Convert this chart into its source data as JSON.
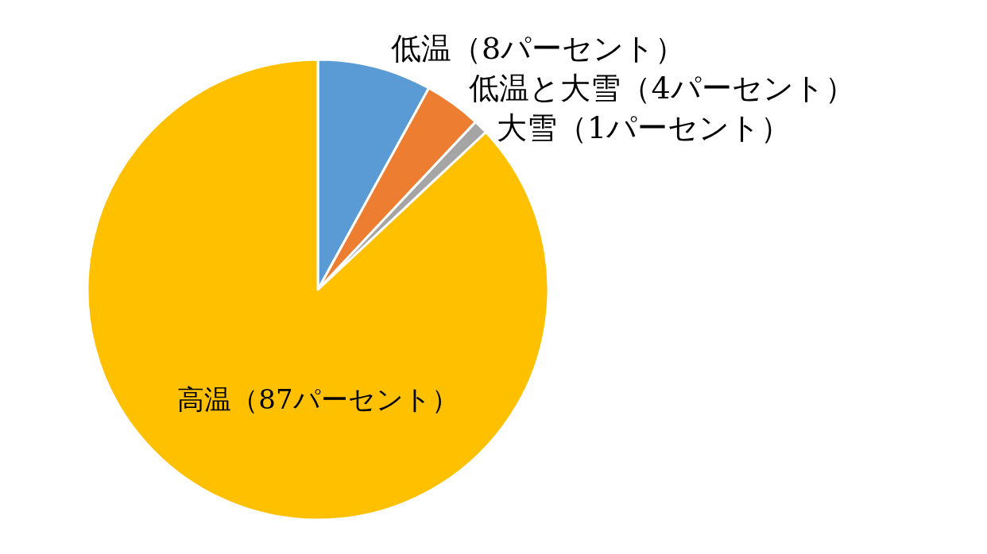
{
  "chart_data": {
    "type": "pie",
    "categories": [
      "低温（8パーセント）",
      "低温と大雪（4パーセント）",
      "大雪（1パーセント）",
      "高温（87パーセント）"
    ],
    "values": [
      8,
      4,
      1,
      87
    ],
    "colors": [
      "#5b9bd5",
      "#ed7d31",
      "#a5a5a5",
      "#ffc000"
    ]
  }
}
